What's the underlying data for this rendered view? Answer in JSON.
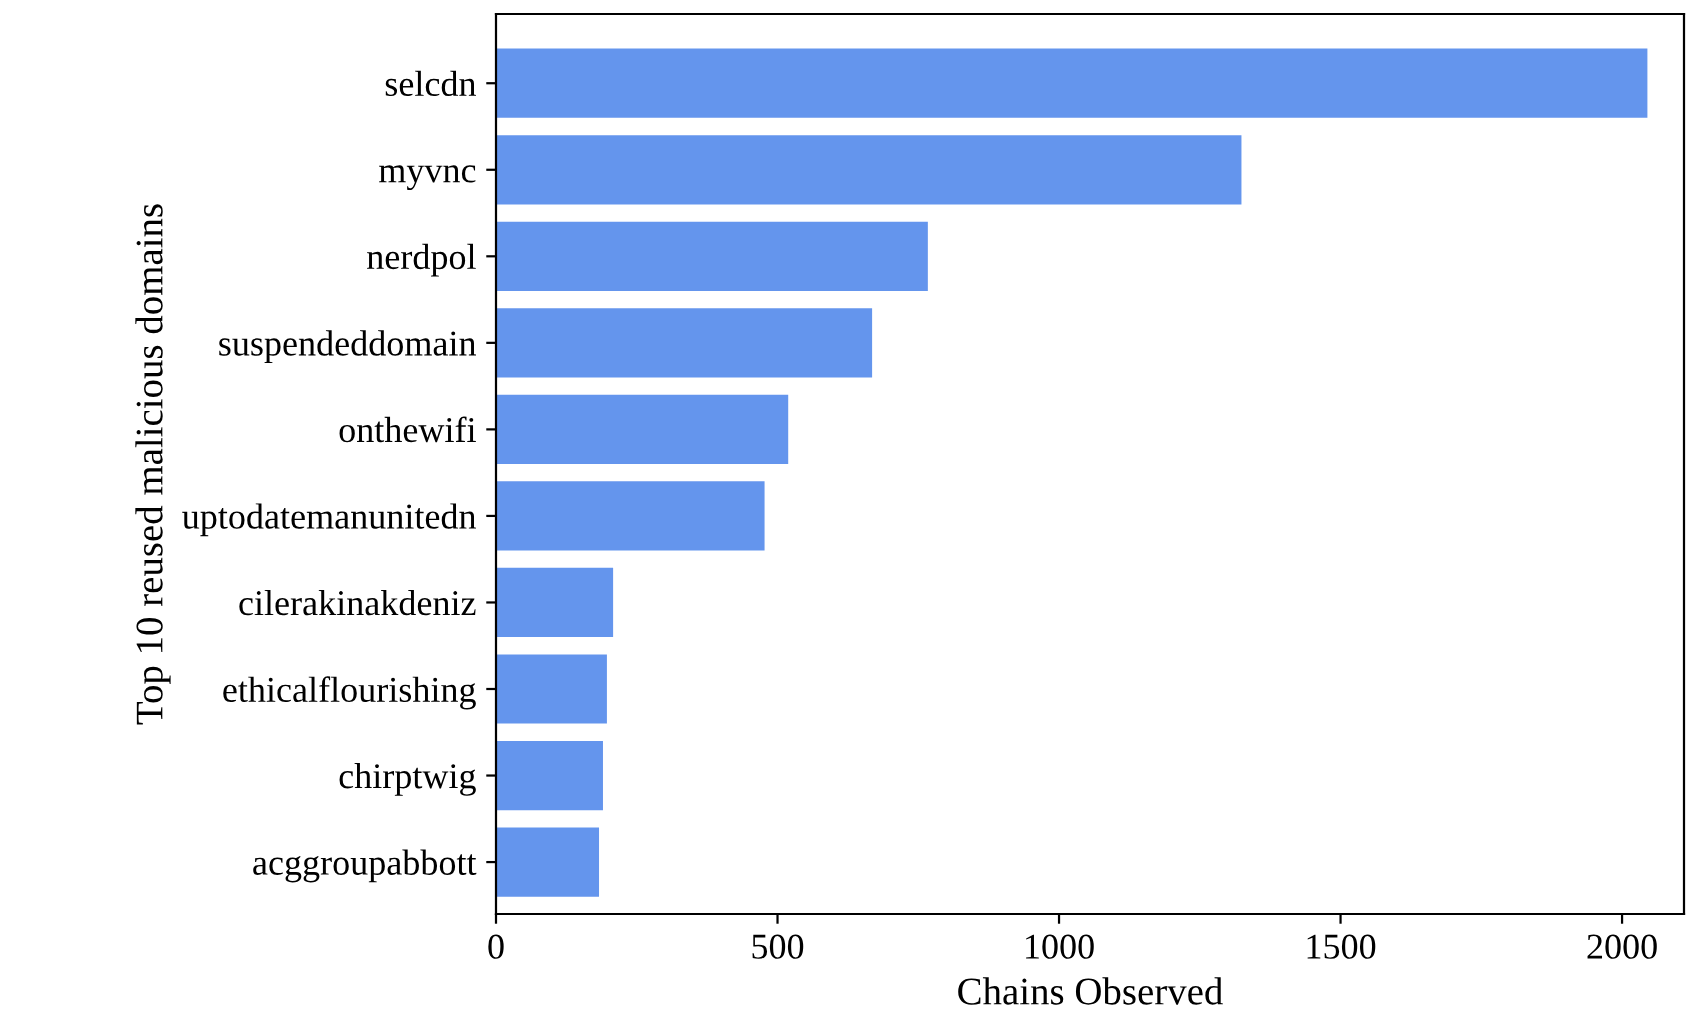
{
  "chart_data": {
    "type": "bar",
    "orientation": "horizontal",
    "xlabel": "Chains Observed",
    "ylabel": "Top 10 reused malicious domains",
    "categories": [
      "selcdn",
      "myvnc",
      "nerdpol",
      "suspendeddomain",
      "onthewifi",
      "uptodatemanunitedn",
      "cilerakinakdeniz",
      "ethicalflourishing",
      "chirptwig",
      "acggroupabbott"
    ],
    "values": [
      2045,
      1324,
      767,
      668,
      519,
      477,
      208,
      197,
      190,
      183
    ],
    "color": "#6495ed",
    "xlim": [
      0,
      2110
    ],
    "xticks": [
      0,
      500,
      1000,
      1500,
      2000
    ],
    "grid": false
  }
}
